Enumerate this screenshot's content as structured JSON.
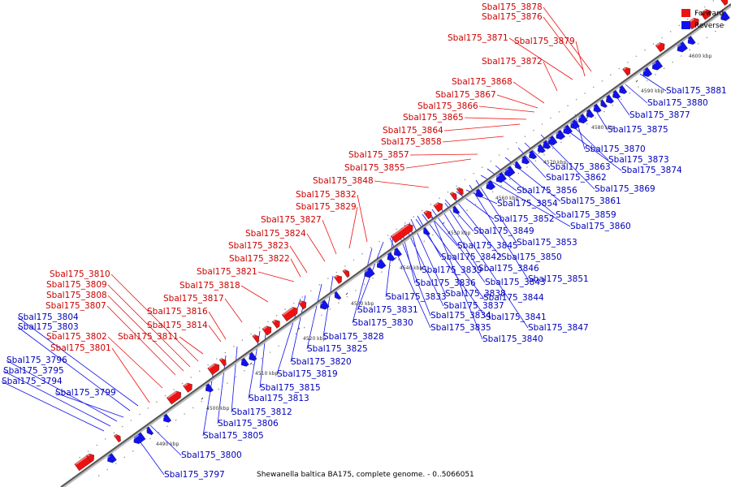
{
  "caption": "Shewanella baltica BA175, complete genome. - 0..5066051",
  "legend": {
    "forward_label": "Forward",
    "reverse_label": "Reverse",
    "forward_color": "#ee1111",
    "reverse_color": "#1111ee"
  },
  "colors": {
    "forward": "#ee1111",
    "reverse": "#1111ee",
    "forward_text": "#cc0000",
    "reverse_text": "#0000bb"
  },
  "ticks": [
    "4490 kbp",
    "4500 kbp",
    "4510 kbp",
    "4520 kbp",
    "4530 kbp",
    "4540 kbp",
    "4550 kbp",
    "4560 kbp",
    "4570 kbp",
    "4580 kbp",
    "4590 kbp",
    "4600 kbp",
    "4610 kbp"
  ],
  "forward_labels": [
    "Sbal175_3878",
    "Sbal175_3876",
    "Sbal175_3871",
    "Sbal175_3879",
    "Sbal175_3872",
    "Sbal175_3868",
    "Sbal175_3867",
    "Sbal175_3866",
    "Sbal175_3865",
    "Sbal175_3864",
    "Sbal175_3858",
    "Sbal175_3857",
    "Sbal175_3855",
    "Sbal175_3848",
    "Sbal175_3832",
    "Sbal175_3829",
    "Sbal175_3827",
    "Sbal175_3824",
    "Sbal175_3823",
    "Sbal175_3822",
    "Sbal175_3821",
    "Sbal175_3810",
    "Sbal175_3818",
    "Sbal175_3809",
    "Sbal175_3808",
    "Sbal175_3817",
    "Sbal175_3807",
    "Sbal175_3816",
    "Sbal175_3814",
    "Sbal175_3802",
    "Sbal175_3811",
    "Sbal175_3801"
  ],
  "reverse_labels": [
    "Sbal175_3881",
    "Sbal175_3880",
    "Sbal175_3877",
    "Sbal175_3875",
    "Sbal175_3870",
    "Sbal175_3873",
    "Sbal175_3874",
    "Sbal175_3863",
    "Sbal175_3862",
    "Sbal175_3869",
    "Sbal175_3856",
    "Sbal175_3861",
    "Sbal175_3854",
    "Sbal175_3859",
    "Sbal175_3860",
    "Sbal175_3852",
    "Sbal175_3849",
    "Sbal175_3853",
    "Sbal175_3845",
    "Sbal175_3850",
    "Sbal175_3842",
    "Sbal175_3846",
    "Sbal175_3839",
    "Sbal175_3851",
    "Sbal175_3843",
    "Sbal175_3836",
    "Sbal175_3838",
    "Sbal175_3833",
    "Sbal175_3844",
    "Sbal175_3837",
    "Sbal175_3831",
    "Sbal175_3834",
    "Sbal175_3841",
    "Sbal175_3830",
    "Sbal175_3835",
    "Sbal175_3847",
    "Sbal175_3840",
    "Sbal175_3828",
    "Sbal175_3825",
    "Sbal175_3820",
    "Sbal175_3819",
    "Sbal175_3804",
    "Sbal175_3803",
    "Sbal175_3796",
    "Sbal175_3815",
    "Sbal175_3795",
    "Sbal175_3813",
    "Sbal175_3794",
    "Sbal175_3799",
    "Sbal175_3812",
    "Sbal175_3806",
    "Sbal175_3805",
    "Sbal175_3800",
    "Sbal175_3797"
  ]
}
